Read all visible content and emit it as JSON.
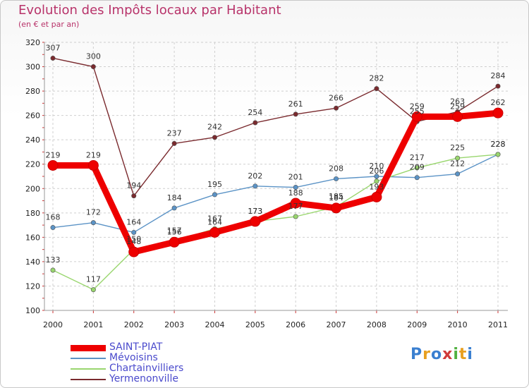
{
  "header": {
    "title": "Evolution des Impôts locaux par Habitant",
    "subtitle": "(en € et par an)"
  },
  "logo": {
    "letters": [
      "P",
      "r",
      "o",
      "x",
      "i",
      "t",
      "i"
    ],
    "colors": [
      "#3a7fd0",
      "#e8a020",
      "#3a7fd0",
      "#d03a3a",
      "#50b040",
      "#e8a020",
      "#3a7fd0"
    ]
  },
  "chart_data": {
    "type": "line",
    "title": "Evolution des Impôts locaux par Habitant",
    "subtitle": "(en € et par an)",
    "xlabel": "",
    "ylabel": "",
    "categories": [
      "2000",
      "2001",
      "2002",
      "2003",
      "2004",
      "2005",
      "2006",
      "2007",
      "2008",
      "2009",
      "2010",
      "2011"
    ],
    "ylim": [
      100,
      320
    ],
    "yticks": [
      100,
      120,
      140,
      160,
      180,
      200,
      220,
      240,
      260,
      280,
      300,
      320
    ],
    "grid": true,
    "legend_position": "bottom-left",
    "series": [
      {
        "name": "Yermenonville",
        "color": "#7a2a2e",
        "values": [
          307,
          300,
          194,
          237,
          242,
          254,
          261,
          266,
          282,
          255,
          263,
          284
        ],
        "labels": [
          "307",
          "300",
          "194",
          "237",
          "242",
          "254",
          "261",
          "266",
          "282",
          "255",
          "263",
          "284"
        ]
      },
      {
        "name": "Mévoisins",
        "color": "#5b93c6",
        "values": [
          168,
          172,
          164,
          184,
          195,
          202,
          201,
          208,
          210,
          209,
          212,
          228
        ],
        "labels": [
          "168",
          "172",
          "164",
          "184",
          "195",
          "202",
          "201",
          "208",
          "210",
          "209",
          "212",
          "228"
        ]
      },
      {
        "name": "Chartainvilliers",
        "color": "#99d66e",
        "values": [
          133,
          117,
          150,
          157,
          167,
          173,
          177,
          185,
          206,
          217,
          225,
          228
        ],
        "labels": [
          "133",
          "117",
          "150",
          "157",
          "167",
          "173",
          "177",
          "185",
          "206",
          "217",
          "225",
          "228"
        ]
      },
      {
        "name": "SAINT-PIAT",
        "color": "#ee0000",
        "values": [
          219,
          219,
          148,
          156,
          164,
          173,
          188,
          184,
          193,
          259,
          259,
          262
        ],
        "labels": [
          "219",
          "219",
          "148",
          "156",
          "164",
          "173",
          "188",
          "184",
          "193",
          "259",
          "259",
          "262"
        ]
      }
    ],
    "legend": [
      {
        "name": "SAINT-PIAT",
        "color": "#ee0000"
      },
      {
        "name": "Mévoisins",
        "color": "#5b93c6"
      },
      {
        "name": "Chartainvilliers",
        "color": "#99d66e"
      },
      {
        "name": "Yermenonville",
        "color": "#7a2a2e"
      }
    ]
  }
}
